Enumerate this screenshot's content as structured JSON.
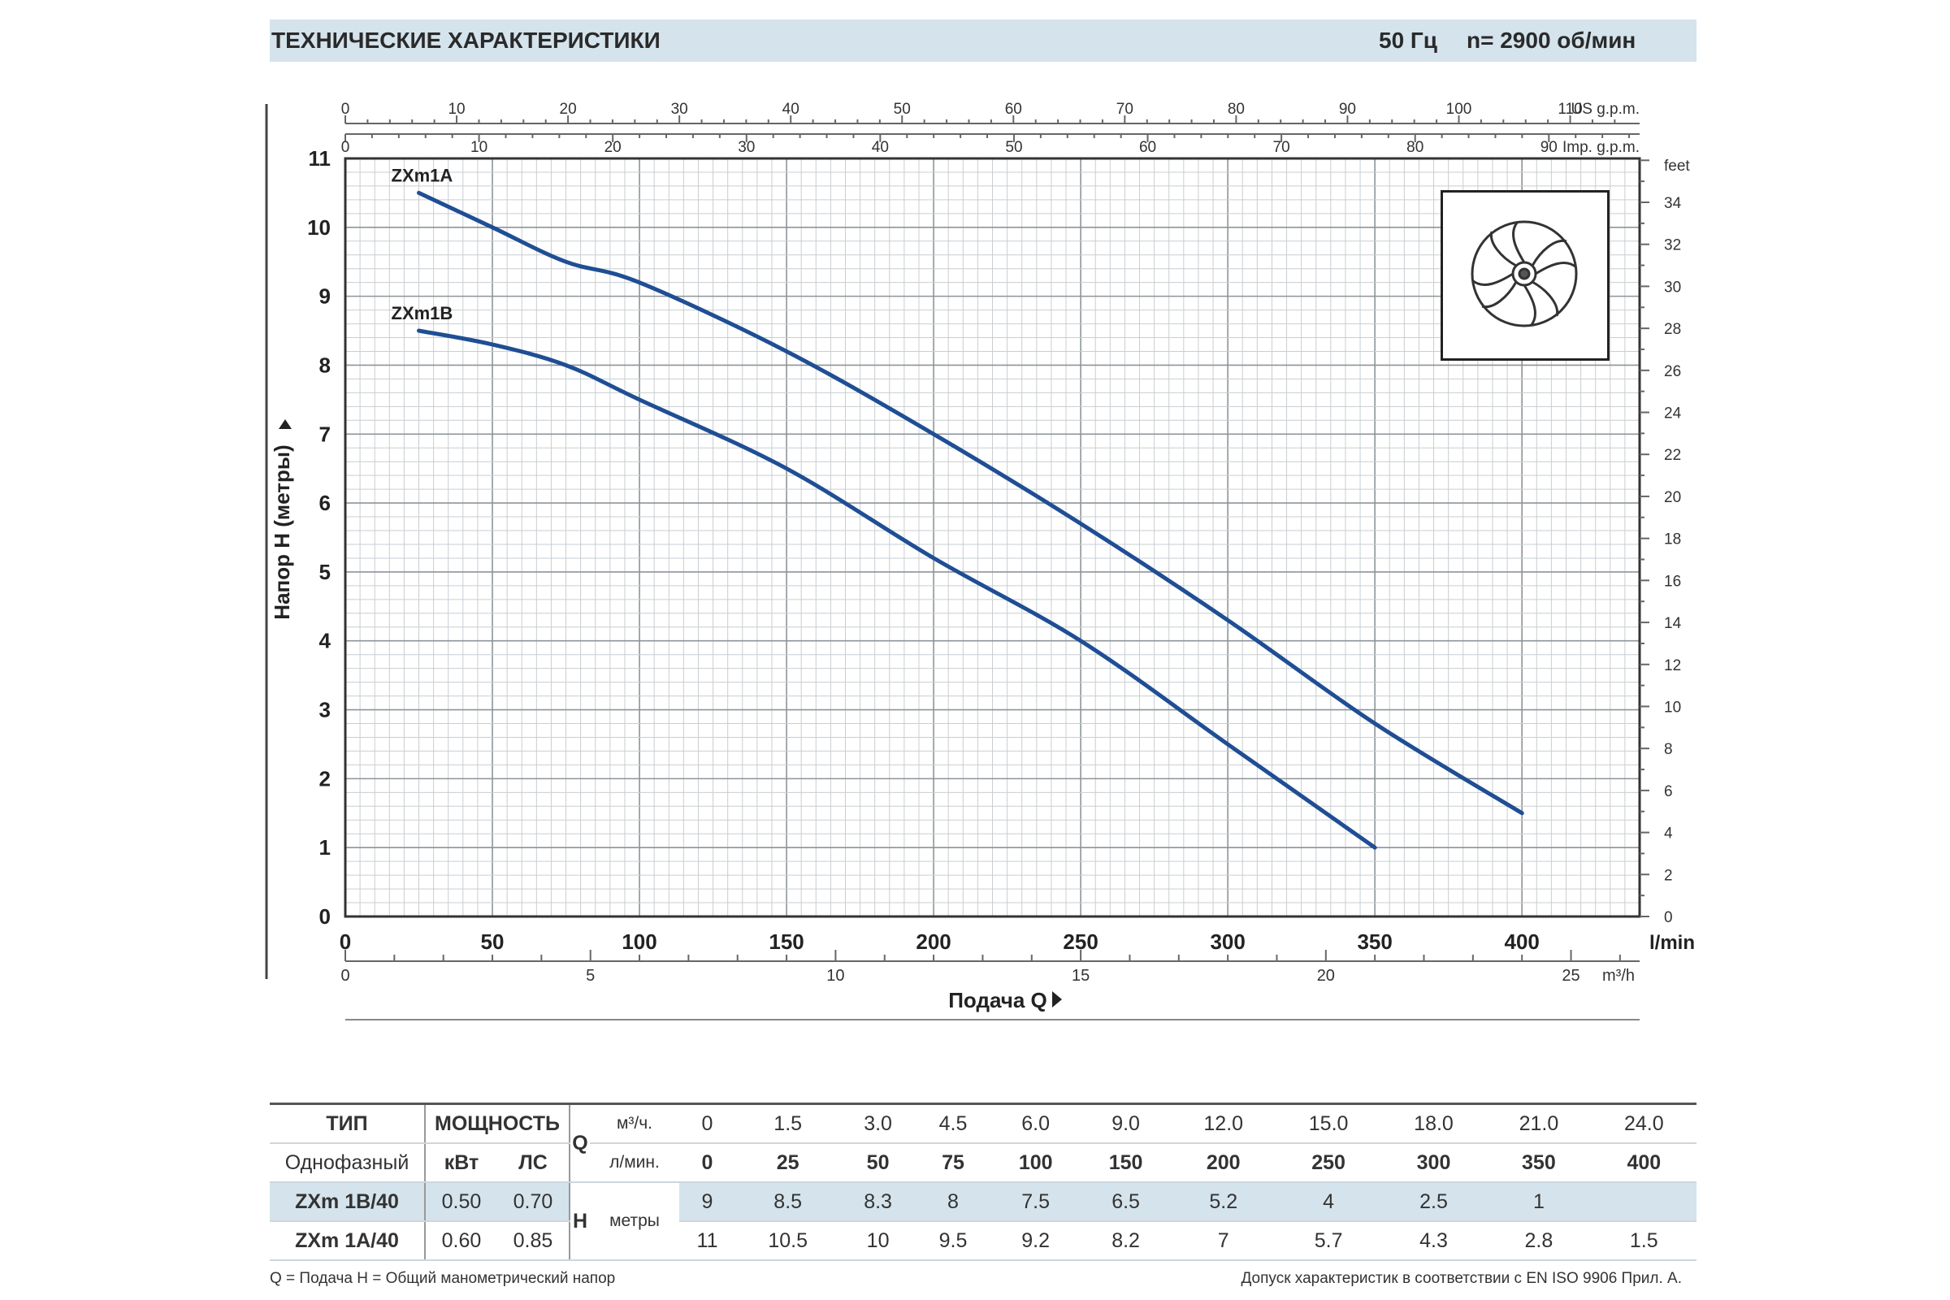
{
  "header": {
    "title": "ТЕХНИЧЕСКИЕ ХАРАКТЕРИСТИКИ",
    "freq": "50 Гц",
    "speed": "n= 2900  об/мин"
  },
  "chart_data": {
    "type": "line",
    "ylabel": "Напор H (метры)",
    "xlabel": "Подача Q",
    "x_unit": "l/min",
    "xlim": [
      0,
      440
    ],
    "ylim": [
      0,
      11
    ],
    "x_ticks": [
      "0",
      "50",
      "100",
      "150",
      "200",
      "250",
      "300",
      "350",
      "400"
    ],
    "y_ticks": [
      "0",
      "1",
      "2",
      "3",
      "4",
      "5",
      "6",
      "7",
      "8",
      "9",
      "10",
      "11"
    ],
    "top_axis_usgpm": {
      "unit": "US g.p.m.",
      "ticks": [
        "0",
        "10",
        "20",
        "30",
        "40",
        "50",
        "60",
        "70",
        "80",
        "90",
        "100",
        "110"
      ]
    },
    "top_axis_impgpm": {
      "unit": "Imp. g.p.m.",
      "ticks": [
        "0",
        "10",
        "20",
        "30",
        "40",
        "50",
        "60",
        "70",
        "80",
        "90"
      ]
    },
    "right_axis_feet": {
      "unit": "feet",
      "ticks": [
        "0",
        "2",
        "4",
        "6",
        "8",
        "10",
        "12",
        "14",
        "16",
        "18",
        "20",
        "22",
        "24",
        "26",
        "28",
        "30",
        "32",
        "34"
      ]
    },
    "bottom_axis_m3h": {
      "unit": "m³/h",
      "ticks": [
        "0",
        "5",
        "10",
        "15",
        "20",
        "25"
      ]
    },
    "series": [
      {
        "name": "ZXm1A",
        "x": [
          25,
          50,
          75,
          100,
          150,
          200,
          250,
          300,
          350,
          400
        ],
        "y": [
          10.5,
          10,
          9.5,
          9.2,
          8.2,
          7,
          5.7,
          4.3,
          2.8,
          1.5
        ]
      },
      {
        "name": "ZXm1B",
        "x": [
          25,
          50,
          75,
          100,
          150,
          200,
          250,
          300,
          350
        ],
        "y": [
          8.5,
          8.3,
          8,
          7.5,
          6.5,
          5.2,
          4,
          2.5,
          1
        ]
      }
    ],
    "grid": true,
    "line_color": "#1f4e94"
  },
  "table": {
    "type_label": "ТИП",
    "phase_label": "Однофазный",
    "power_label": "МОЩНОСТЬ",
    "kw_label": "кВт",
    "hp_label": "ЛС",
    "q_label": "Q",
    "m3h_label": "м³/ч.",
    "lmin_label": "л/мин.",
    "h_label": "H",
    "h_unit": "метры",
    "m3h": [
      "0",
      "1.5",
      "3.0",
      "4.5",
      "6.0",
      "9.0",
      "12.0",
      "15.0",
      "18.0",
      "21.0",
      "24.0"
    ],
    "lmin": [
      "0",
      "25",
      "50",
      "75",
      "100",
      "150",
      "200",
      "250",
      "300",
      "350",
      "400"
    ],
    "rows": [
      {
        "model": "ZXm 1B/40",
        "kw": "0.50",
        "hp": "0.70",
        "h": [
          "9",
          "8.5",
          "8.3",
          "8",
          "7.5",
          "6.5",
          "5.2",
          "4",
          "2.5",
          "1",
          ""
        ]
      },
      {
        "model": "ZXm 1A/40",
        "kw": "0.60",
        "hp": "0.85",
        "h": [
          "11",
          "10.5",
          "10",
          "9.5",
          "9.2",
          "8.2",
          "7",
          "5.7",
          "4.3",
          "2.8",
          "1.5"
        ]
      }
    ]
  },
  "footer": {
    "left": "Q = Подача   H = Общий манометрический напор",
    "right": "Допуск характеристик в соответствии с EN ISO 9906 Прил. А."
  }
}
